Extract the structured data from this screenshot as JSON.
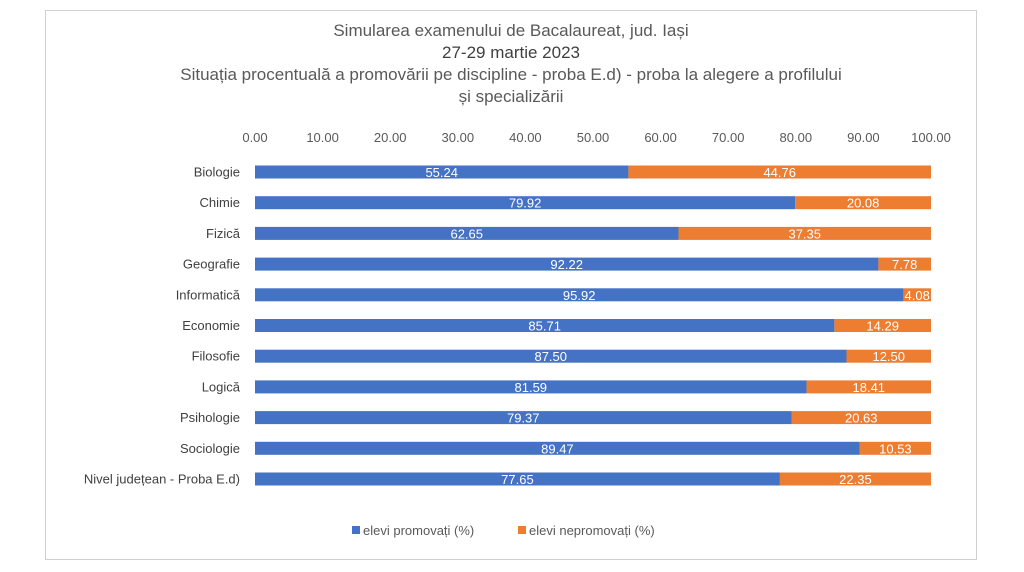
{
  "title_lines": [
    "Simularea examenului de Bacalaureat, jud. Iași",
    "27-29 martie 2023",
    "Situația procentuală a promovării pe discipline - proba E.d) - proba la alegere a profilului",
    "și specializării"
  ],
  "colors": {
    "promovati": "#4472C4",
    "nepromovati": "#ED7D31",
    "text": "#595959"
  },
  "chart_data": {
    "type": "bar",
    "orientation": "horizontal",
    "stacked": true,
    "title": "Simularea examenului de Bacalaureat, jud. Iași 27-29 martie 2023 Situația procentuală a promovării pe discipline - proba E.d) - proba la alegere a profilului și specializării",
    "categories": [
      "Biologie",
      "Chimie",
      "Fizică",
      "Geografie",
      "Informatică",
      "Economie",
      "Filosofie",
      "Logică",
      "Psihologie",
      "Sociologie",
      "Nivel județean - Proba E.d)"
    ],
    "series": [
      {
        "name": "elevi promovați (%)",
        "values": [
          55.24,
          79.92,
          62.65,
          92.22,
          95.92,
          85.71,
          87.5,
          81.59,
          79.37,
          89.47,
          77.65
        ],
        "labels": [
          "55.24",
          "79.92",
          "62.65",
          "92.22",
          "95.92",
          "85.71",
          "87.50",
          "81.59",
          "79.37",
          "89.47",
          "77.65"
        ]
      },
      {
        "name": "elevi nepromovați (%)",
        "values": [
          44.76,
          20.08,
          37.35,
          7.78,
          4.08,
          14.29,
          12.5,
          18.41,
          20.63,
          10.53,
          22.35
        ],
        "labels": [
          "44.76",
          "20.08",
          "37.35",
          "7.78",
          "4.08",
          "14.29",
          "12.50",
          "18.41",
          "20.63",
          "10.53",
          "22.35"
        ]
      }
    ],
    "xlim": [
      0,
      100
    ],
    "ticks": [
      "0.00",
      "10.00",
      "20.00",
      "30.00",
      "40.00",
      "50.00",
      "60.00",
      "70.00",
      "80.00",
      "90.00",
      "100.00"
    ],
    "tick_values": [
      0,
      10,
      20,
      30,
      40,
      50,
      60,
      70,
      80,
      90,
      100
    ],
    "axis_position": "top",
    "grid": false,
    "legend_position": "bottom"
  }
}
